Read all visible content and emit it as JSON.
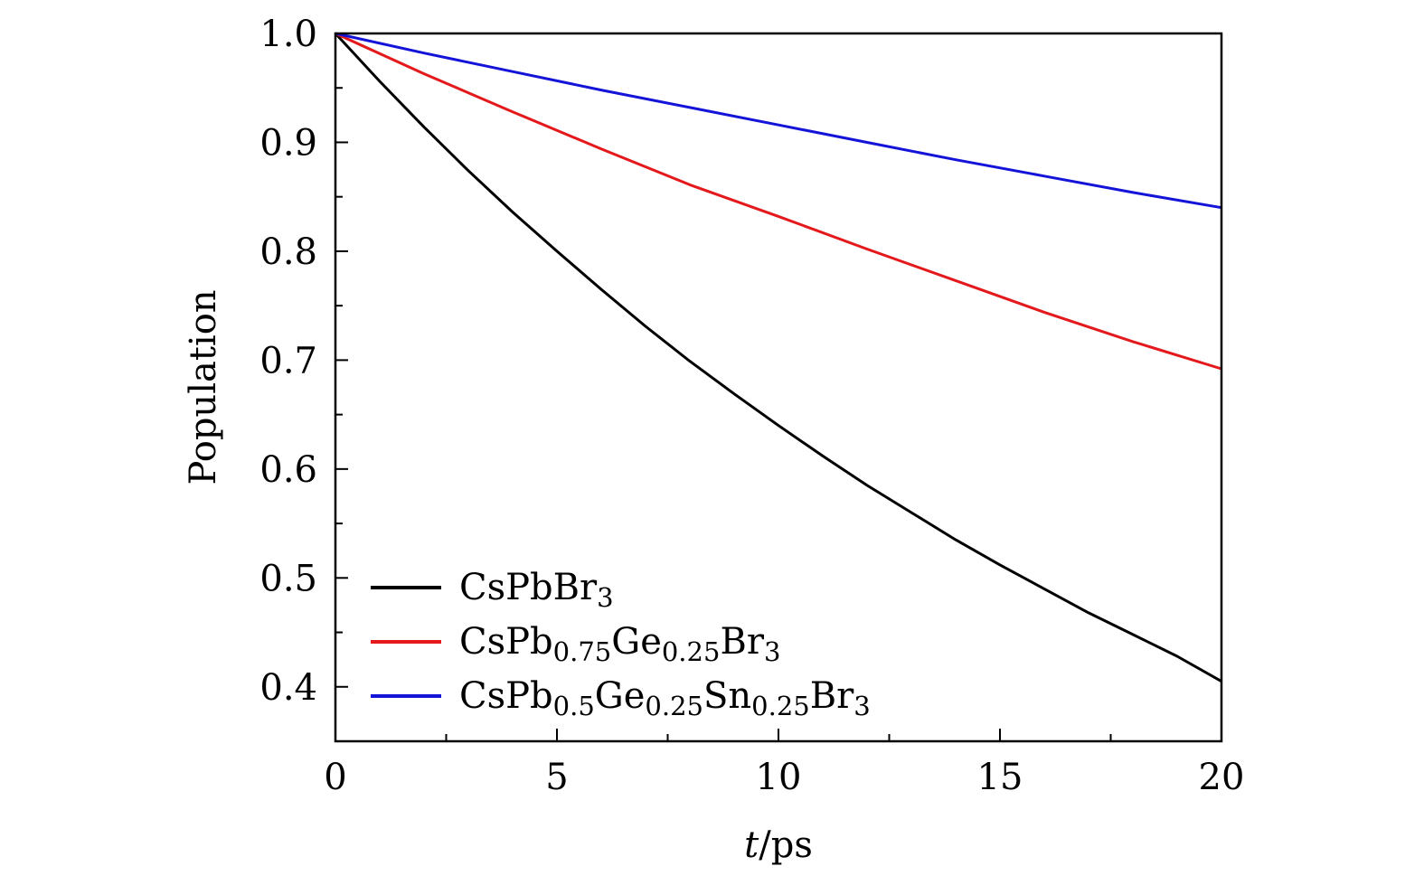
{
  "chart_data": {
    "type": "line",
    "xlabel_italic": "t",
    "xlabel_rest": "/ps",
    "ylabel": "Population",
    "xlim": [
      0,
      20
    ],
    "ylim": [
      0.35,
      1.0
    ],
    "x_ticks": [
      "0",
      "5",
      "10",
      "15",
      "20"
    ],
    "y_ticks": [
      "0.4",
      "0.5",
      "0.6",
      "0.7",
      "0.8",
      "0.9",
      "1.0"
    ],
    "grid": false,
    "legend_position": "bottom-left",
    "series": [
      {
        "name": "CsPbBr3",
        "label_parts": [
          {
            "t": "CsPbBr"
          },
          {
            "t": "3",
            "sub": true
          }
        ],
        "color": "#000000",
        "x": [
          0,
          1,
          2,
          3,
          4,
          5,
          6,
          7,
          8,
          9,
          10,
          11,
          12,
          13,
          14,
          15,
          16,
          17,
          18,
          19,
          20
        ],
        "y": [
          1.0,
          0.956,
          0.914,
          0.874,
          0.836,
          0.8,
          0.765,
          0.731,
          0.699,
          0.669,
          0.64,
          0.612,
          0.585,
          0.56,
          0.535,
          0.512,
          0.49,
          0.468,
          0.448,
          0.428,
          0.405
        ]
      },
      {
        "name": "CsPb0.75Ge0.25Br3",
        "label_parts": [
          {
            "t": "CsPb"
          },
          {
            "t": "0.75",
            "sub": true
          },
          {
            "t": "Ge"
          },
          {
            "t": "0.25",
            "sub": true
          },
          {
            "t": "Br"
          },
          {
            "t": "3",
            "sub": true
          }
        ],
        "color": "#e3191c",
        "x": [
          0,
          2,
          4,
          6,
          8,
          10,
          12,
          14,
          16,
          18,
          20
        ],
        "y": [
          1.0,
          0.963,
          0.928,
          0.894,
          0.861,
          0.832,
          0.802,
          0.773,
          0.744,
          0.717,
          0.692
        ]
      },
      {
        "name": "CsPb0.5Ge0.25Sn0.25Br3",
        "label_parts": [
          {
            "t": "CsPb"
          },
          {
            "t": "0.5",
            "sub": true
          },
          {
            "t": "Ge"
          },
          {
            "t": "0.25",
            "sub": true
          },
          {
            "t": "Sn"
          },
          {
            "t": "0.25",
            "sub": true
          },
          {
            "t": "Br"
          },
          {
            "t": "3",
            "sub": true
          }
        ],
        "color": "#1414d9",
        "x": [
          0,
          2,
          4,
          6,
          8,
          10,
          12,
          14,
          16,
          18,
          20
        ],
        "y": [
          1.0,
          0.982,
          0.965,
          0.948,
          0.932,
          0.916,
          0.9,
          0.884,
          0.869,
          0.854,
          0.84
        ]
      }
    ]
  }
}
